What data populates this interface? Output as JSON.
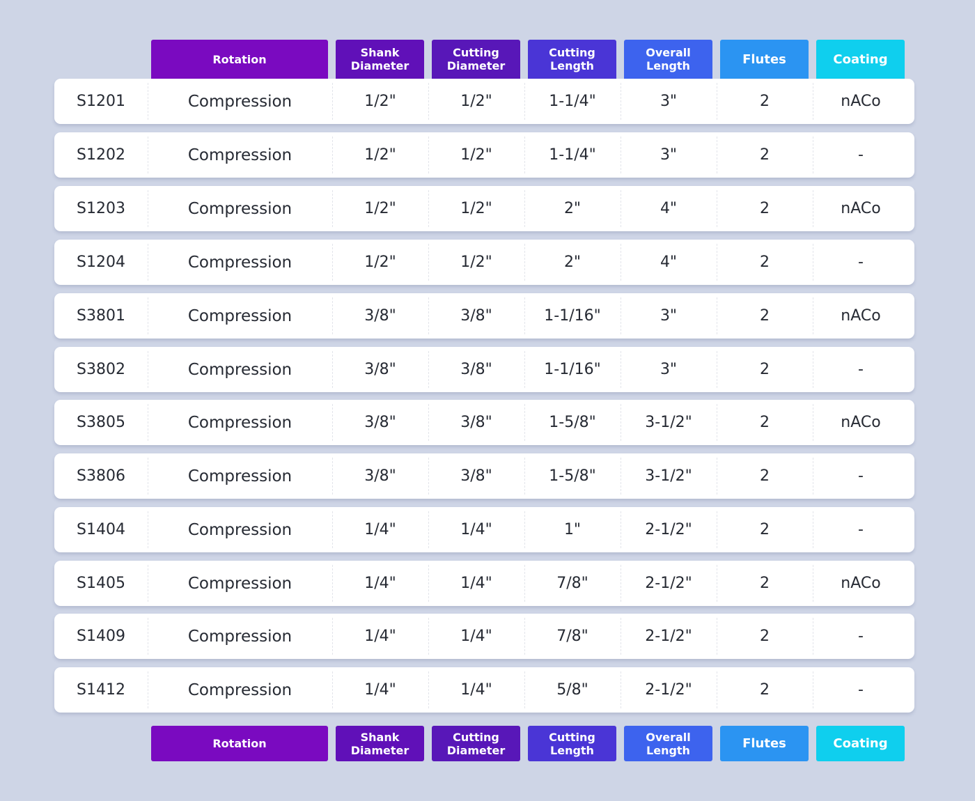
{
  "headers": [
    {
      "key": "rotation",
      "label": "Rotation",
      "color": "#7a0ac0"
    },
    {
      "key": "shank",
      "label": "Shank\nDiameter",
      "color": "#6010b8"
    },
    {
      "key": "cut_dia",
      "label": "Cutting\nDiameter",
      "color": "#5817b8"
    },
    {
      "key": "cut_len",
      "label": "Cutting\nLength",
      "color": "#4a35d6"
    },
    {
      "key": "overall",
      "label": "Overall\nLength",
      "color": "#3d63ee"
    },
    {
      "key": "flutes",
      "label": "Flutes",
      "color": "#2b94f2"
    },
    {
      "key": "coating",
      "label": "Coating",
      "color": "#0fcfee"
    }
  ],
  "rows": [
    {
      "sku": "S1201",
      "rotation": "Compression",
      "shank": "1/2\"",
      "cut_dia": "1/2\"",
      "cut_len": "1-1/4\"",
      "overall": "3\"",
      "flutes": "2",
      "coating": "nACo"
    },
    {
      "sku": "S1202",
      "rotation": "Compression",
      "shank": "1/2\"",
      "cut_dia": "1/2\"",
      "cut_len": "1-1/4\"",
      "overall": "3\"",
      "flutes": "2",
      "coating": "-"
    },
    {
      "sku": "S1203",
      "rotation": "Compression",
      "shank": "1/2\"",
      "cut_dia": "1/2\"",
      "cut_len": "2\"",
      "overall": "4\"",
      "flutes": "2",
      "coating": "nACo"
    },
    {
      "sku": "S1204",
      "rotation": "Compression",
      "shank": "1/2\"",
      "cut_dia": "1/2\"",
      "cut_len": "2\"",
      "overall": "4\"",
      "flutes": "2",
      "coating": "-"
    },
    {
      "sku": "S3801",
      "rotation": "Compression",
      "shank": "3/8\"",
      "cut_dia": "3/8\"",
      "cut_len": "1-1/16\"",
      "overall": "3\"",
      "flutes": "2",
      "coating": "nACo"
    },
    {
      "sku": "S3802",
      "rotation": "Compression",
      "shank": "3/8\"",
      "cut_dia": "3/8\"",
      "cut_len": "1-1/16\"",
      "overall": "3\"",
      "flutes": "2",
      "coating": "-"
    },
    {
      "sku": "S3805",
      "rotation": "Compression",
      "shank": "3/8\"",
      "cut_dia": "3/8\"",
      "cut_len": "1-5/8\"",
      "overall": "3-1/2\"",
      "flutes": "2",
      "coating": "nACo"
    },
    {
      "sku": "S3806",
      "rotation": "Compression",
      "shank": "3/8\"",
      "cut_dia": "3/8\"",
      "cut_len": "1-5/8\"",
      "overall": "3-1/2\"",
      "flutes": "2",
      "coating": "-"
    },
    {
      "sku": "S1404",
      "rotation": "Compression",
      "shank": "1/4\"",
      "cut_dia": "1/4\"",
      "cut_len": "1\"",
      "overall": "2-1/2\"",
      "flutes": "2",
      "coating": "-"
    },
    {
      "sku": "S1405",
      "rotation": "Compression",
      "shank": "1/4\"",
      "cut_dia": "1/4\"",
      "cut_len": "7/8\"",
      "overall": "2-1/2\"",
      "flutes": "2",
      "coating": "nACo"
    },
    {
      "sku": "S1409",
      "rotation": "Compression",
      "shank": "1/4\"",
      "cut_dia": "1/4\"",
      "cut_len": "7/8\"",
      "overall": "2-1/2\"",
      "flutes": "2",
      "coating": "-"
    },
    {
      "sku": "S1412",
      "rotation": "Compression",
      "shank": "1/4\"",
      "cut_dia": "1/4\"",
      "cut_len": "5/8\"",
      "overall": "2-1/2\"",
      "flutes": "2",
      "coating": "-"
    }
  ]
}
